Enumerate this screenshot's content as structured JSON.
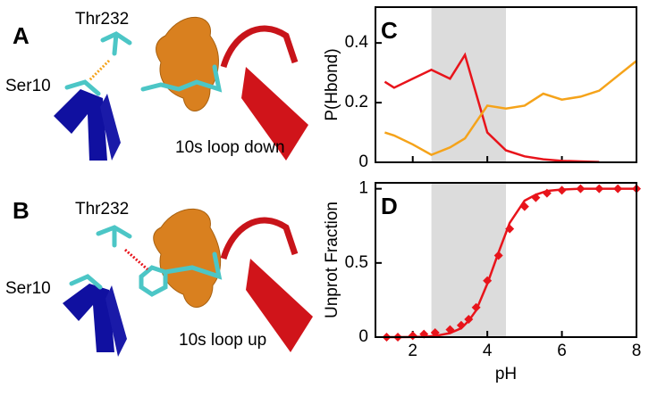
{
  "structure_panels": [
    {
      "panel_label": "A",
      "residue_top": "Thr232",
      "residue_left": "Ser10",
      "caption": "10s loop down"
    },
    {
      "panel_label": "B",
      "residue_top": "Thr232",
      "residue_left": "Ser10",
      "caption": "10s loop up"
    }
  ],
  "chart_data": [
    {
      "type": "line",
      "panel_label": "C",
      "ylabel": "P(Hbond)",
      "x": [
        1.25,
        1.5,
        2,
        2.5,
        3,
        3.4,
        4,
        4.5,
        5,
        5.5,
        6,
        6.5,
        7,
        7.5,
        8
      ],
      "series": [
        {
          "color": "#e8141b",
          "values": [
            0.27,
            0.25,
            0.28,
            0.31,
            0.28,
            0.36,
            0.1,
            0.04,
            0.02,
            0.01,
            0.005,
            0.003,
            0.001,
            null,
            null
          ]
        },
        {
          "color": "#f5a31a",
          "values": [
            0.1,
            0.09,
            0.06,
            0.025,
            0.05,
            0.08,
            0.19,
            0.18,
            0.19,
            0.23,
            0.21,
            0.22,
            0.24,
            0.29,
            0.34
          ]
        }
      ],
      "shade": [
        2.5,
        4.5
      ],
      "xlim": [
        1,
        8
      ],
      "ylim": [
        0,
        0.52
      ],
      "xticks": [
        2,
        4,
        6,
        8
      ],
      "yticks": [
        0,
        0.2,
        0.4
      ],
      "xtick_labels": false
    },
    {
      "type": "line",
      "panel_label": "D",
      "ylabel": "Unprot Fraction",
      "xlabel": "pH",
      "x": [
        1.3,
        1.6,
        2,
        2.3,
        2.6,
        3,
        3.3,
        3.5,
        3.7,
        4,
        4.3,
        4.6,
        5,
        5.3,
        5.6,
        6,
        6.5,
        7,
        7.5,
        8
      ],
      "series": [
        {
          "color": "#e8141b",
          "style": "markers",
          "values": [
            0,
            0,
            0.01,
            0.02,
            0.03,
            0.05,
            0.08,
            0.12,
            0.2,
            0.38,
            0.55,
            0.73,
            0.88,
            0.94,
            0.97,
            0.99,
            1,
            1,
            1,
            1
          ]
        },
        {
          "color": "#e8141b",
          "style": "line",
          "values": [
            0,
            0,
            0.001,
            0.003,
            0.008,
            0.027,
            0.06,
            0.11,
            0.18,
            0.36,
            0.57,
            0.77,
            0.92,
            0.96,
            0.985,
            0.995,
            1,
            1,
            1,
            1
          ]
        }
      ],
      "shade": [
        2.5,
        4.5
      ],
      "xlim": [
        1,
        8
      ],
      "ylim": [
        0,
        1.04
      ],
      "xticks": [
        2,
        4,
        6,
        8
      ],
      "yticks": [
        0,
        0.5,
        1
      ],
      "xtick_labels": true
    }
  ]
}
